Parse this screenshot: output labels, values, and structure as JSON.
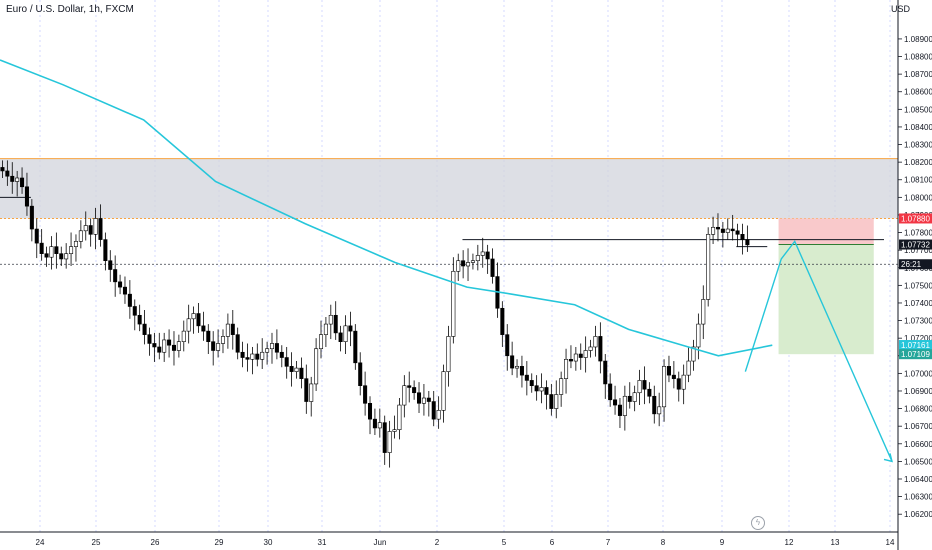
{
  "header": {
    "symbol_title": "Euro / U.S. Dollar, 1h, FXCM",
    "currency": "USD"
  },
  "price_tags": [
    {
      "label": "1.07880",
      "price": 1.0788,
      "bg": "#f23645"
    },
    {
      "label": "1.07732",
      "price": 1.07732,
      "bg": "#131722"
    },
    {
      "label": "26:21",
      "price": 1.0762,
      "bg": "#131722"
    },
    {
      "label": "1.07161",
      "price": 1.07161,
      "bg": "#26c6da"
    },
    {
      "label": "1.07109",
      "price": 1.07109,
      "bg": "#26a69a"
    }
  ],
  "colors": {
    "candle": "#000000",
    "moving_average": "#26c6da",
    "zone_fill": "#d1d4dc",
    "zone_border": "#f7a341",
    "stop_zone": "#f9c9cb",
    "target_zone": "#d8ecce",
    "grid": "#b7c2ff"
  },
  "chart_data": {
    "type": "candlestick",
    "title": "Euro / U.S. Dollar, 1h, FXCM",
    "ylabel": "USD",
    "ylim": [
      1.0615,
      1.0907
    ],
    "y_ticks": [
      "1.08900",
      "1.08800",
      "1.08700",
      "1.08600",
      "1.08500",
      "1.08400",
      "1.08300",
      "1.08200",
      "1.08100",
      "1.08000",
      "1.07900",
      "1.07800",
      "1.07700",
      "1.07600",
      "1.07500",
      "1.07400",
      "1.07300",
      "1.07200",
      "1.07100",
      "1.07000",
      "1.06900",
      "1.06800",
      "1.06700",
      "1.06600",
      "1.06500",
      "1.06400",
      "1.06300",
      "1.06200"
    ],
    "x_ticks": [
      "24",
      "25",
      "26",
      "29",
      "30",
      "31",
      "Jun",
      "2",
      "5",
      "6",
      "7",
      "8",
      "9",
      "12",
      "13",
      "14"
    ],
    "grid": true,
    "closes": [
      1.0815,
      1.0812,
      1.0809,
      1.0811,
      1.0806,
      1.0795,
      1.0782,
      1.0774,
      1.0768,
      1.0766,
      1.0772,
      1.0768,
      1.0765,
      1.0768,
      1.0772,
      1.0775,
      1.0781,
      1.0784,
      1.0779,
      1.0788,
      1.0776,
      1.0764,
      1.0759,
      1.0752,
      1.0749,
      1.0745,
      1.0738,
      1.0733,
      1.0728,
      1.0722,
      1.0717,
      1.0715,
      1.0712,
      1.0719,
      1.0716,
      1.0713,
      1.0718,
      1.0724,
      1.0731,
      1.0734,
      1.0727,
      1.0724,
      1.0718,
      1.0713,
      1.0717,
      1.0721,
      1.0728,
      1.0722,
      1.0712,
      1.0709,
      1.0708,
      1.0711,
      1.0708,
      1.0712,
      1.0714,
      1.0717,
      1.0712,
      1.0709,
      1.0704,
      1.0701,
      1.0703,
      1.0697,
      1.0684,
      1.0694,
      1.0714,
      1.0722,
      1.0728,
      1.0733,
      1.0723,
      1.0718,
      1.0727,
      1.0724,
      1.0706,
      1.0693,
      1.0683,
      1.0674,
      1.0669,
      1.0672,
      1.0655,
      1.0667,
      1.0668,
      1.0682,
      1.0693,
      1.0692,
      1.0689,
      1.0683,
      1.0686,
      1.0684,
      1.0674,
      1.0679,
      1.0701,
      1.0721,
      1.0758,
      1.0764,
      1.0761,
      1.0763,
      1.0764,
      1.0767,
      1.0769,
      1.0765,
      1.0755,
      1.0737,
      1.0722,
      1.071,
      1.0703,
      1.0704,
      1.0699,
      1.0696,
      1.0693,
      1.069,
      1.0692,
      1.0688,
      1.068,
      1.0688,
      1.0697,
      1.0708,
      1.0707,
      1.0711,
      1.0709,
      1.0713,
      1.0715,
      1.0721,
      1.0707,
      1.0694,
      1.0685,
      1.0682,
      1.0676,
      1.0687,
      1.0684,
      1.0689,
      1.0696,
      1.0691,
      1.0687,
      1.0677,
      1.0681,
      1.0704,
      1.0699,
      1.0697,
      1.0691,
      1.0699,
      1.0707,
      1.0715,
      1.0728,
      1.0742,
      1.0779,
      1.0783,
      1.0782,
      1.078,
      1.0782,
      1.0781,
      1.0779,
      1.0776,
      1.0773
    ]
  },
  "drawings": {
    "moving_average": [
      {
        "t": 0,
        "p": 1.0878
      },
      {
        "t": 0.07,
        "p": 1.0864
      },
      {
        "t": 0.16,
        "p": 1.0844
      },
      {
        "t": 0.24,
        "p": 1.0809
      },
      {
        "t": 0.34,
        "p": 1.0785
      },
      {
        "t": 0.44,
        "p": 1.0763
      },
      {
        "t": 0.52,
        "p": 1.0749
      },
      {
        "t": 0.57,
        "p": 1.0745
      },
      {
        "t": 0.64,
        "p": 1.0739
      },
      {
        "t": 0.7,
        "p": 1.0725
      },
      {
        "t": 0.76,
        "p": 1.0716
      },
      {
        "t": 0.8,
        "p": 1.071
      },
      {
        "t": 0.86,
        "p": 1.0716
      }
    ],
    "resistance_zone": {
      "top": 1.0822,
      "bottom": 1.0788
    },
    "trade": {
      "entry": 1.07732,
      "stop": 1.0788,
      "target": 1.07109,
      "t_start": 0.867,
      "t_end": 0.973
    },
    "horizontal_levels": [
      {
        "price": 1.0776,
        "t_start": 0.515,
        "t_end": 1.0
      },
      {
        "price": 1.0772,
        "t_start": 0.82,
        "t_end": 0.87
      },
      {
        "price": 1.08,
        "t_start": 0.0,
        "t_end": 0.05
      }
    ],
    "current_price": 1.0762,
    "projection": [
      {
        "t": 0.83,
        "p": 1.0701
      },
      {
        "t": 0.87,
        "p": 1.0765
      },
      {
        "t": 0.885,
        "p": 1.0775
      },
      {
        "t": 1.025,
        "p": 1.065
      }
    ]
  }
}
